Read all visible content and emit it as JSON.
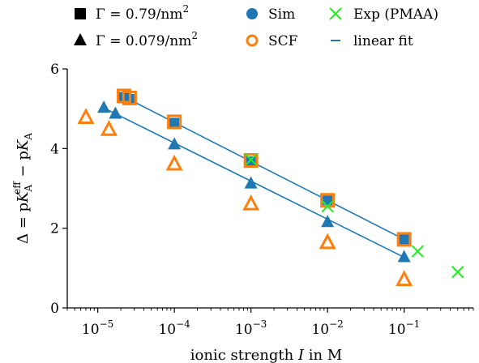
{
  "chart_data": {
    "type": "scatter",
    "xscale": "log",
    "xlim": [
      4e-06,
      0.8
    ],
    "ylim": [
      0,
      6
    ],
    "xticks": [
      {
        "value": 1e-05,
        "base": "10",
        "exp": "−5"
      },
      {
        "value": 0.0001,
        "base": "10",
        "exp": "−4"
      },
      {
        "value": 0.001,
        "base": "10",
        "exp": "−3"
      },
      {
        "value": 0.01,
        "base": "10",
        "exp": "−2"
      },
      {
        "value": 0.1,
        "base": "10",
        "exp": "−1"
      }
    ],
    "yticks": [
      {
        "value": 0,
        "label": "0"
      },
      {
        "value": 2,
        "label": "2"
      },
      {
        "value": 4,
        "label": "4"
      },
      {
        "value": 6,
        "label": "6"
      }
    ],
    "xlabel": {
      "prefix": "ionic strength ",
      "var": "I",
      "suffix": " in M"
    },
    "ylabel": {
      "lhs": "Δ = p",
      "k1": "K",
      "sub1": "A",
      "sup1": "eff",
      "mid": " − p",
      "k2": "K",
      "sub2": "A"
    },
    "colors": {
      "sim": "#1f77b4",
      "scf": "#ff7f0e",
      "exp": "#22ee22",
      "fit": "#1f77b4"
    },
    "series": [
      {
        "key": "sim_high",
        "marker": "square",
        "style": "sim",
        "x": [
          2.2e-05,
          2.6e-05,
          0.0001,
          0.001,
          0.01,
          0.1
        ],
        "y": [
          5.3,
          5.25,
          4.65,
          3.68,
          2.7,
          1.72
        ]
      },
      {
        "key": "scf_high",
        "marker": "square",
        "style": "scf",
        "x": [
          2.2e-05,
          2.6e-05,
          0.0001,
          0.001,
          0.01,
          0.1
        ],
        "y": [
          5.32,
          5.27,
          4.67,
          3.7,
          2.7,
          1.72
        ]
      },
      {
        "key": "sim_low",
        "marker": "triangle",
        "style": "sim",
        "x": [
          1.2e-05,
          1.7e-05,
          0.0001,
          0.001,
          0.01,
          0.1
        ],
        "y": [
          5.02,
          4.87,
          4.1,
          3.12,
          2.15,
          1.27
        ]
      },
      {
        "key": "scf_low",
        "marker": "triangle",
        "style": "scf",
        "x": [
          7e-06,
          1.4e-05,
          0.0001,
          0.001,
          0.01,
          0.1
        ],
        "y": [
          4.77,
          4.47,
          3.6,
          2.6,
          1.63,
          0.7
        ]
      },
      {
        "key": "exp",
        "marker": "x",
        "style": "exp",
        "x": [
          0.001,
          0.01,
          0.15,
          0.5
        ],
        "y": [
          3.72,
          2.55,
          1.42,
          0.9
        ]
      }
    ],
    "fits": [
      {
        "key": "fit_high",
        "x": [
          2.2e-05,
          0.1
        ],
        "y": [
          5.3,
          1.72
        ]
      },
      {
        "key": "fit_low",
        "x": [
          1.2e-05,
          0.1
        ],
        "y": [
          5.02,
          1.27
        ]
      }
    ],
    "legend": {
      "placement": "top",
      "entries": [
        {
          "marker": "square",
          "style": "black",
          "label_prefix": "Γ = 0.79/nm",
          "label_sup": "2"
        },
        {
          "marker": "circle",
          "style": "sim",
          "label": "Sim"
        },
        {
          "marker": "x",
          "style": "exp",
          "label": "Exp (PMAA)"
        },
        {
          "marker": "triangle",
          "style": "black",
          "label_prefix": "Γ = 0.079/nm",
          "label_sup": "2"
        },
        {
          "marker": "circle-open",
          "style": "scf",
          "label": "SCF"
        },
        {
          "marker": "line",
          "style": "fit",
          "label": "linear fit"
        }
      ]
    }
  }
}
